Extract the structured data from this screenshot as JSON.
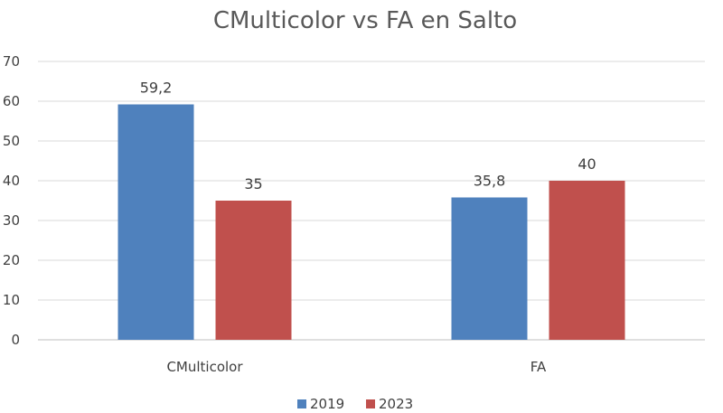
{
  "chart_data": {
    "type": "bar",
    "title": "CMulticolor vs FA en Salto",
    "categories": [
      "CMulticolor",
      "FA"
    ],
    "series": [
      {
        "name": "2019",
        "values": [
          59.2,
          35.8
        ],
        "labels": [
          "59,2",
          "35,8"
        ],
        "color": "#4F81BD"
      },
      {
        "name": "2023",
        "values": [
          35,
          40
        ],
        "labels": [
          "35",
          "40"
        ],
        "color": "#C0504D"
      }
    ],
    "xlabel": "",
    "ylabel": "",
    "ylim": [
      0,
      70
    ],
    "yticks": [
      0,
      10,
      20,
      30,
      40,
      50,
      60,
      70
    ],
    "grid": true,
    "legend": "bottom"
  }
}
